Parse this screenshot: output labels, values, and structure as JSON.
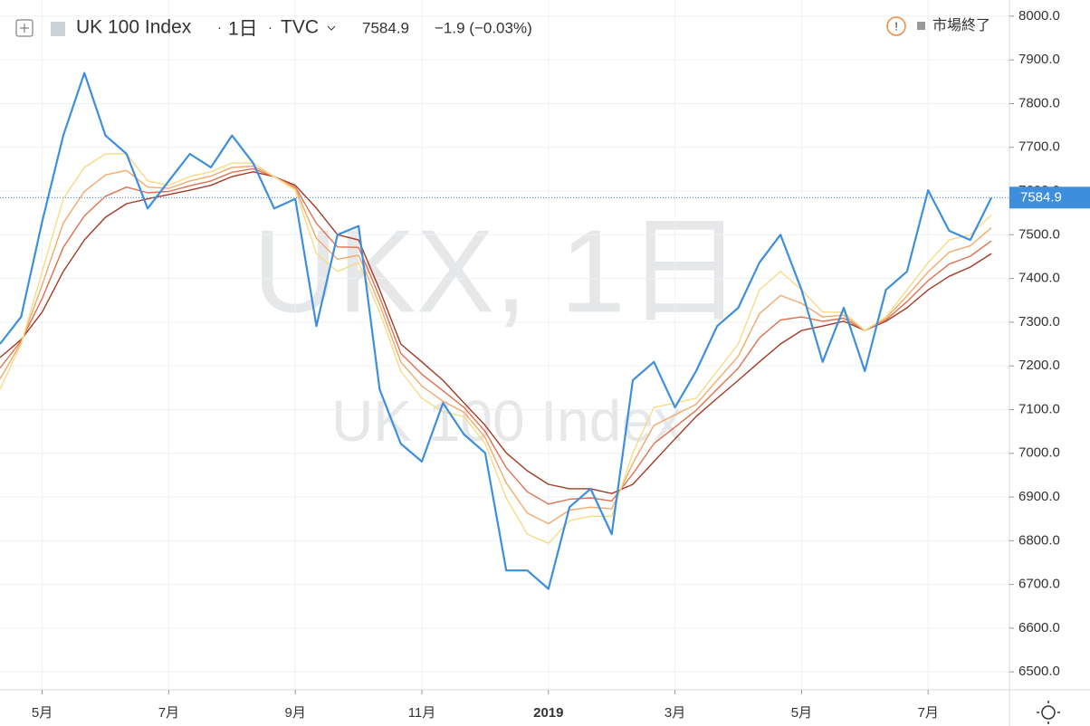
{
  "chart_data": {
    "type": "line",
    "title": "UK 100 Index",
    "interval": "1日",
    "source": "TVC",
    "last": 7584.9,
    "change": "−1.9 (−0.03%)",
    "status": "市場終了",
    "watermark": "UKX, 1日",
    "categories": [
      null,
      null,
      "5月",
      null,
      null,
      null,
      null,
      null,
      "7月",
      null,
      null,
      null,
      null,
      null,
      "9月",
      null,
      null,
      null,
      null,
      null,
      "11月",
      null,
      null,
      null,
      null,
      null,
      "2019",
      null,
      null,
      null,
      null,
      null,
      "3月",
      null,
      null,
      null,
      null,
      null,
      "5月",
      null,
      null,
      null,
      null,
      null,
      "7月",
      null,
      null,
      null
    ],
    "series": [
      {
        "color": "#a33a24",
        "values": [
          7219,
          7260,
          7323,
          7416,
          7488,
          7540,
          7571,
          7582,
          7592,
          7602,
          7613,
          7633,
          7644,
          7633,
          7613,
          7561,
          7500,
          7488,
          7374,
          7250,
          7209,
          7167,
          7115,
          7064,
          7001,
          6960,
          6929,
          6919,
          6919,
          6908,
          6929,
          6981,
          7033,
          7084,
          7126,
          7167,
          7209,
          7250,
          7281,
          7291,
          7302,
          7281,
          7302,
          7333,
          7374,
          7405,
          7426,
          7457
        ]
      },
      {
        "color": "#e0704f",
        "values": [
          7195,
          7257,
          7354,
          7471,
          7543,
          7588,
          7609,
          7596,
          7599,
          7612,
          7623,
          7643,
          7651,
          7633,
          7609,
          7526,
          7472,
          7471,
          7357,
          7229,
          7181,
          7143,
          7105,
          7050,
          6967,
          6912,
          6884,
          6895,
          6898,
          6891,
          6953,
          7022,
          7060,
          7098,
          7147,
          7195,
          7264,
          7305,
          7312,
          7302,
          7309,
          7281,
          7305,
          7347,
          7395,
          7433,
          7451,
          7486
        ]
      },
      {
        "color": "#f2a96b",
        "values": [
          7170,
          7253,
          7385,
          7527,
          7599,
          7637,
          7647,
          7609,
          7606,
          7623,
          7634,
          7654,
          7657,
          7633,
          7606,
          7492,
          7444,
          7453,
          7340,
          7209,
          7154,
          7119,
          7094,
          7036,
          6932,
          6863,
          6839,
          6870,
          6877,
          6873,
          6977,
          7064,
          7088,
          7112,
          7167,
          7222,
          7319,
          7361,
          7343,
          7312,
          7316,
          7281,
          7309,
          7360,
          7415,
          7460,
          7475,
          7516
        ]
      },
      {
        "color": "#f5dc86",
        "values": [
          7146,
          7250,
          7416,
          7582,
          7654,
          7685,
          7685,
          7623,
          7613,
          7633,
          7644,
          7664,
          7664,
          7633,
          7602,
          7457,
          7416,
          7436,
          7323,
          7188,
          7126,
          7095,
          7084,
          7022,
          6898,
          6815,
          6794,
          6846,
          6856,
          6856,
          7001,
          7105,
          7115,
          7126,
          7188,
          7250,
          7374,
          7416,
          7374,
          7323,
          7323,
          7281,
          7312,
          7374,
          7436,
          7488,
          7500,
          7545
        ]
      },
      {
        "color": "#3d8fde",
        "values": [
          7250,
          7312,
          7530,
          7727,
          7870,
          7727,
          7685,
          7560,
          7623,
          7685,
          7654,
          7727,
          7664,
          7560,
          7582,
          7291,
          7500,
          7520,
          7146,
          7022,
          6981,
          7115,
          7043,
          7001,
          6732,
          6732,
          6690,
          6877,
          6919,
          6815,
          7167,
          7209,
          7105,
          7188,
          7291,
          7333,
          7436,
          7500,
          7374,
          7209,
          7333,
          7188,
          7374,
          7416,
          7602,
          7509,
          7488,
          7584.9
        ]
      }
    ],
    "ylim": [
      6459,
      8037
    ],
    "yticks": [
      {
        "value": 6500,
        "label": "6500.0"
      },
      {
        "value": 6600,
        "label": "6600.0"
      },
      {
        "value": 6700,
        "label": "6700.0"
      },
      {
        "value": 6800,
        "label": "6800.0"
      },
      {
        "value": 6900,
        "label": "6900.0"
      },
      {
        "value": 7000,
        "label": "7000.0"
      },
      {
        "value": 7100,
        "label": "7100.0"
      },
      {
        "value": 7200,
        "label": "7200.0"
      },
      {
        "value": 7300,
        "label": "7300.0"
      },
      {
        "value": 7400,
        "label": "7400.0"
      },
      {
        "value": 7500,
        "label": "7500.0"
      },
      {
        "value": 7600,
        "label": "7600.0"
      },
      {
        "value": 7700,
        "label": "7700.0"
      },
      {
        "value": 7800,
        "label": "7800.0"
      },
      {
        "value": 7900,
        "label": "7900.0"
      },
      {
        "value": 8000,
        "label": "8000.0"
      }
    ],
    "grid": true
  }
}
